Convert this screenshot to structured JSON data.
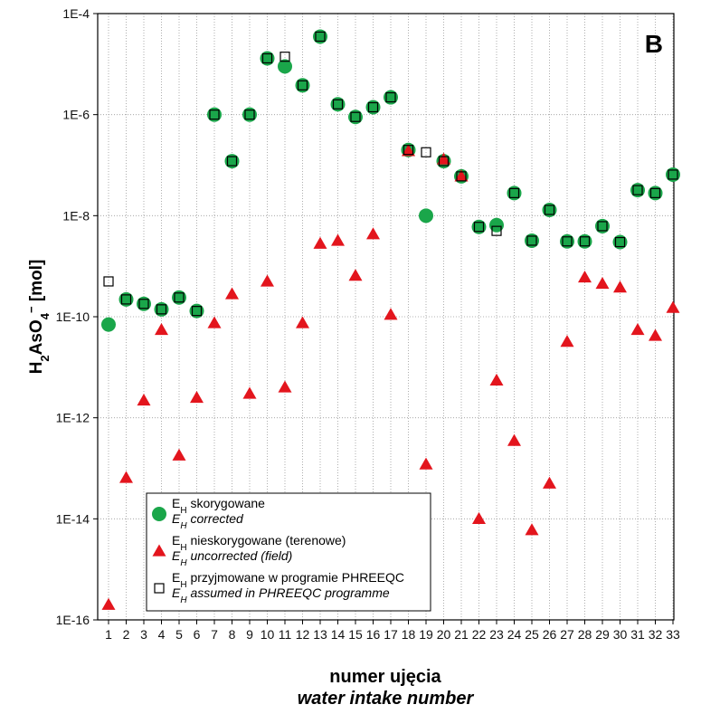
{
  "chart_data": {
    "type": "scatter",
    "panel_label": "B",
    "xlabel": "numer ujęcia",
    "xlabel_en": "water intake number",
    "ylabel": "H2AsO4- [mol]",
    "ylim": [
      1e-16,
      0.0001
    ],
    "y_scale": "log",
    "y_ticks": [
      "1E-4",
      "1E-6",
      "1E-8",
      "1E-10",
      "1E-12",
      "1E-14",
      "1E-16"
    ],
    "x_ticks": [
      "1",
      "2",
      "3",
      "4",
      "5",
      "6",
      "7",
      "8",
      "9",
      "10",
      "11",
      "12",
      "13",
      "14",
      "15",
      "16",
      "17",
      "18",
      "19",
      "20",
      "21",
      "22",
      "23",
      "24",
      "25",
      "26",
      "27",
      "28",
      "29",
      "30",
      "31",
      "32",
      "33"
    ],
    "grid": true,
    "legend_position": "bottom-left",
    "series": [
      {
        "name": "EH skorygowane / EH corrected",
        "marker": "circle",
        "color": "#1aa64a",
        "points": [
          [
            1,
            7e-11
          ],
          [
            2,
            2.2e-10
          ],
          [
            3,
            1.8e-10
          ],
          [
            4,
            1.4e-10
          ],
          [
            5,
            2.4e-10
          ],
          [
            6,
            1.3e-10
          ],
          [
            7,
            1e-06
          ],
          [
            8,
            1.2e-07
          ],
          [
            9,
            1e-06
          ],
          [
            10,
            1.3e-05
          ],
          [
            11,
            9e-06
          ],
          [
            12,
            3.8e-06
          ],
          [
            13,
            3.5e-05
          ],
          [
            14,
            1.6e-06
          ],
          [
            15,
            9e-07
          ],
          [
            16,
            1.4e-06
          ],
          [
            17,
            2.2e-06
          ],
          [
            18,
            2e-07
          ],
          [
            19,
            1e-08
          ],
          [
            20,
            1.2e-07
          ],
          [
            21,
            6e-08
          ],
          [
            22,
            6e-09
          ],
          [
            23,
            6.5e-09
          ],
          [
            24,
            2.8e-08
          ],
          [
            25,
            3.2e-09
          ],
          [
            26,
            1.3e-08
          ],
          [
            27,
            3.1e-09
          ],
          [
            28,
            3.1e-09
          ],
          [
            29,
            6.2e-09
          ],
          [
            30,
            3e-09
          ],
          [
            31,
            3.2e-08
          ],
          [
            32,
            2.8e-08
          ],
          [
            33,
            6.5e-08
          ]
        ]
      },
      {
        "name": "EH nieskorygowane (terenowe) / EH uncorrected (field)",
        "marker": "triangle",
        "color": "#e3151d",
        "points": [
          [
            1,
            2e-16
          ],
          [
            2,
            6.5e-14
          ],
          [
            3,
            2.2e-12
          ],
          [
            4,
            5.5e-11
          ],
          [
            5,
            1.8e-13
          ],
          [
            6,
            2.5e-12
          ],
          [
            7,
            7.5e-11
          ],
          [
            8,
            2.8e-10
          ],
          [
            9,
            3e-12
          ],
          [
            10,
            5e-10
          ],
          [
            11,
            4e-12
          ],
          [
            12,
            7.5e-11
          ],
          [
            13,
            2.8e-09
          ],
          [
            14,
            3.2e-09
          ],
          [
            15,
            6.5e-10
          ],
          [
            16,
            4.3e-09
          ],
          [
            17,
            1.1e-10
          ],
          [
            18,
            1.9e-07
          ],
          [
            19,
            1.2e-13
          ],
          [
            20,
            1.3e-07
          ],
          [
            21,
            6e-08
          ],
          [
            22,
            1e-14
          ],
          [
            23,
            5.5e-12
          ],
          [
            24,
            3.5e-13
          ],
          [
            25,
            6e-15
          ],
          [
            26,
            5e-14
          ],
          [
            27,
            3.2e-11
          ],
          [
            28,
            6e-10
          ],
          [
            29,
            4.5e-10
          ],
          [
            30,
            3.8e-10
          ],
          [
            31,
            5.5e-11
          ],
          [
            32,
            4.2e-11
          ],
          [
            33,
            1.5e-10
          ]
        ]
      },
      {
        "name": "EH przyjmowane w programie PHREEQC / EH assumed in PHREEQC programme",
        "marker": "square",
        "color": "#000000",
        "points": [
          [
            1,
            5e-10
          ],
          [
            2,
            2.2e-10
          ],
          [
            3,
            1.8e-10
          ],
          [
            4,
            1.4e-10
          ],
          [
            5,
            2.4e-10
          ],
          [
            6,
            1.3e-10
          ],
          [
            7,
            1e-06
          ],
          [
            8,
            1.2e-07
          ],
          [
            9,
            1e-06
          ],
          [
            10,
            1.3e-05
          ],
          [
            11,
            1.4e-05
          ],
          [
            12,
            3.8e-06
          ],
          [
            13,
            3.5e-05
          ],
          [
            14,
            1.6e-06
          ],
          [
            15,
            9e-07
          ],
          [
            16,
            1.4e-06
          ],
          [
            17,
            2.2e-06
          ],
          [
            18,
            2e-07
          ],
          [
            19,
            1.8e-07
          ],
          [
            20,
            1.2e-07
          ],
          [
            21,
            6e-08
          ],
          [
            22,
            6e-09
          ],
          [
            23,
            5e-09
          ],
          [
            24,
            2.8e-08
          ],
          [
            25,
            3.2e-09
          ],
          [
            26,
            1.3e-08
          ],
          [
            27,
            3.1e-09
          ],
          [
            28,
            3.1e-09
          ],
          [
            29,
            6.2e-09
          ],
          [
            30,
            3e-09
          ],
          [
            31,
            3.2e-08
          ],
          [
            32,
            2.8e-08
          ],
          [
            33,
            6.5e-08
          ]
        ]
      }
    ],
    "legend": [
      {
        "marker": "circle",
        "line1": "skorygowane",
        "line2": "corrected"
      },
      {
        "marker": "triangle",
        "line1": "nieskorygowane (terenowe)",
        "line2": "uncorrected (field)"
      },
      {
        "marker": "square",
        "line1": "przyjmowane w programie PHREEQC",
        "line2": "assumed in PHREEQC programme"
      }
    ],
    "legend_symbol": "E",
    "legend_symbol_sub": "H"
  }
}
